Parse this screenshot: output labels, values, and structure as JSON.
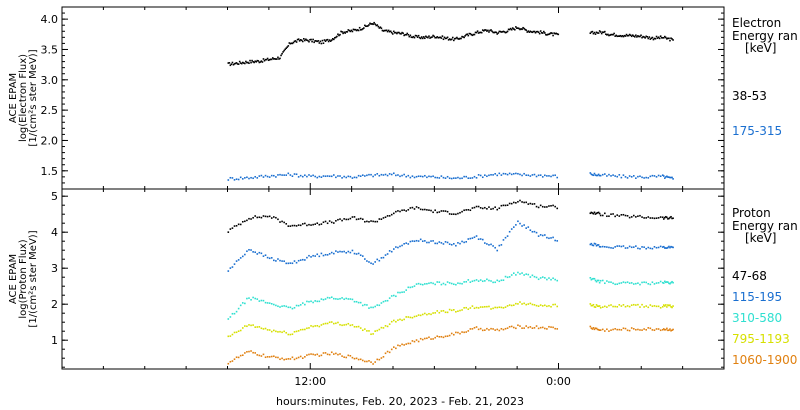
{
  "chart_data": [
    {
      "type": "scatter",
      "panel": "electron",
      "ylabel": [
        "ACE EPAM",
        "log(Electron Flux)",
        "[1/(cm²s ster MeV)]"
      ],
      "ylim": [
        1.2,
        4.2
      ],
      "yticks": [
        "4.0",
        "3.5",
        "3.0",
        "2.5",
        "2.0",
        "1.5"
      ],
      "yticks_values": [
        4.0,
        3.5,
        3.0,
        2.5,
        2.0,
        1.5
      ],
      "legend_title": [
        "Electron",
        "Energy ran",
        "[keV]"
      ],
      "series": [
        {
          "name": "38-53",
          "color": "#000000",
          "points": [
            [
              0,
              3.27
            ],
            [
              0.5,
              3.29
            ],
            [
              1,
              3.31
            ],
            [
              1.5,
              3.32
            ],
            [
              2,
              3.35
            ],
            [
              2.5,
              3.38
            ],
            [
              3,
              3.62
            ],
            [
              3.5,
              3.67
            ],
            [
              4,
              3.66
            ],
            [
              4.5,
              3.63
            ],
            [
              5,
              3.68
            ],
            [
              5.5,
              3.8
            ],
            [
              6,
              3.82
            ],
            [
              6.5,
              3.87
            ],
            [
              7,
              3.95
            ],
            [
              7.5,
              3.82
            ],
            [
              8,
              3.79
            ],
            [
              8.5,
              3.77
            ],
            [
              9,
              3.72
            ],
            [
              9.5,
              3.71
            ],
            [
              10,
              3.73
            ],
            [
              10.5,
              3.7
            ],
            [
              11,
              3.68
            ],
            [
              11.5,
              3.74
            ],
            [
              12,
              3.79
            ],
            [
              12.5,
              3.83
            ],
            [
              13,
              3.79
            ],
            [
              13.5,
              3.82
            ],
            [
              14,
              3.88
            ],
            [
              14.5,
              3.82
            ],
            [
              15,
              3.8
            ],
            [
              15.5,
              3.77
            ],
            [
              16,
              3.75
            ],
            [
              17.5,
              3.78
            ],
            [
              18,
              3.8
            ],
            [
              18.5,
              3.76
            ],
            [
              19,
              3.75
            ],
            [
              19.5,
              3.74
            ],
            [
              20,
              3.73
            ],
            [
              20.5,
              3.7
            ],
            [
              21,
              3.71
            ],
            [
              21.5,
              3.67
            ]
          ]
        },
        {
          "name": "175-315",
          "color": "#1a6fd0",
          "points": [
            [
              0,
              1.38
            ],
            [
              1,
              1.4
            ],
            [
              2,
              1.43
            ],
            [
              3,
              1.45
            ],
            [
              4,
              1.42
            ],
            [
              5,
              1.43
            ],
            [
              6,
              1.41
            ],
            [
              7,
              1.44
            ],
            [
              8,
              1.45
            ],
            [
              9,
              1.42
            ],
            [
              10,
              1.41
            ],
            [
              11,
              1.39
            ],
            [
              12,
              1.42
            ],
            [
              13,
              1.46
            ],
            [
              14,
              1.45
            ],
            [
              15,
              1.44
            ],
            [
              16,
              1.42
            ],
            [
              17.5,
              1.46
            ],
            [
              18,
              1.44
            ],
            [
              19,
              1.42
            ],
            [
              20,
              1.41
            ],
            [
              21,
              1.42
            ],
            [
              21.5,
              1.38
            ]
          ]
        }
      ]
    },
    {
      "type": "scatter",
      "panel": "proton",
      "ylabel": [
        "ACE EPAM",
        "log(Proton Flux)",
        "[1/(cm²s ster MeV)]"
      ],
      "ylim": [
        0.2,
        5.2
      ],
      "yticks": [
        "5",
        "4",
        "3",
        "2",
        "1"
      ],
      "yticks_values": [
        5,
        4,
        3,
        2,
        1
      ],
      "legend_title": [
        "Proton",
        "Energy ran",
        "[keV]"
      ],
      "series": [
        {
          "name": "47-68",
          "color": "#000000",
          "points": [
            [
              0,
              4.05
            ],
            [
              1,
              4.42
            ],
            [
              2,
              4.47
            ],
            [
              3,
              4.2
            ],
            [
              4,
              4.25
            ],
            [
              5,
              4.3
            ],
            [
              6,
              4.42
            ],
            [
              7,
              4.3
            ],
            [
              8,
              4.55
            ],
            [
              9,
              4.7
            ],
            [
              10,
              4.6
            ],
            [
              11,
              4.55
            ],
            [
              12,
              4.7
            ],
            [
              13,
              4.68
            ],
            [
              14,
              4.9
            ],
            [
              15,
              4.75
            ],
            [
              16,
              4.72
            ],
            [
              17.5,
              4.58
            ],
            [
              18,
              4.52
            ],
            [
              19,
              4.47
            ],
            [
              20,
              4.44
            ],
            [
              21,
              4.42
            ],
            [
              21.5,
              4.41
            ]
          ]
        },
        {
          "name": "115-195",
          "color": "#1a6fd0",
          "points": [
            [
              0,
              2.95
            ],
            [
              1,
              3.55
            ],
            [
              2,
              3.3
            ],
            [
              3,
              3.15
            ],
            [
              4,
              3.35
            ],
            [
              5,
              3.45
            ],
            [
              6,
              3.5
            ],
            [
              7,
              3.15
            ],
            [
              8,
              3.55
            ],
            [
              9,
              3.8
            ],
            [
              10,
              3.75
            ],
            [
              11,
              3.68
            ],
            [
              12,
              3.9
            ],
            [
              13,
              3.55
            ],
            [
              14,
              4.3
            ],
            [
              15,
              3.95
            ],
            [
              16,
              3.8
            ],
            [
              17.5,
              3.72
            ],
            [
              18,
              3.62
            ],
            [
              19,
              3.6
            ],
            [
              20,
              3.6
            ],
            [
              21,
              3.6
            ],
            [
              21.5,
              3.6
            ]
          ]
        },
        {
          "name": "310-580",
          "color": "#2fe0d0",
          "points": [
            [
              0,
              1.6
            ],
            [
              1,
              2.2
            ],
            [
              2,
              2.05
            ],
            [
              3,
              1.9
            ],
            [
              4,
              2.1
            ],
            [
              5,
              2.2
            ],
            [
              6,
              2.15
            ],
            [
              7,
              1.9
            ],
            [
              8,
              2.25
            ],
            [
              9,
              2.55
            ],
            [
              10,
              2.6
            ],
            [
              11,
              2.6
            ],
            [
              12,
              2.7
            ],
            [
              13,
              2.65
            ],
            [
              14,
              2.9
            ],
            [
              15,
              2.75
            ],
            [
              16,
              2.7
            ],
            [
              17.5,
              2.72
            ],
            [
              18,
              2.65
            ],
            [
              19,
              2.6
            ],
            [
              20,
              2.6
            ],
            [
              21,
              2.62
            ],
            [
              21.5,
              2.62
            ]
          ]
        },
        {
          "name": "795-1193",
          "color": "#d6e000",
          "points": [
            [
              0,
              1.1
            ],
            [
              1,
              1.45
            ],
            [
              2,
              1.3
            ],
            [
              3,
              1.2
            ],
            [
              4,
              1.4
            ],
            [
              5,
              1.5
            ],
            [
              6,
              1.45
            ],
            [
              7,
              1.2
            ],
            [
              8,
              1.55
            ],
            [
              9,
              1.7
            ],
            [
              10,
              1.8
            ],
            [
              11,
              1.85
            ],
            [
              12,
              1.95
            ],
            [
              13,
              1.9
            ],
            [
              14,
              2.05
            ],
            [
              15,
              2.0
            ],
            [
              16,
              1.98
            ],
            [
              17.5,
              2.0
            ],
            [
              18,
              1.95
            ],
            [
              19,
              1.97
            ],
            [
              20,
              1.97
            ],
            [
              21,
              1.96
            ],
            [
              21.5,
              1.97
            ]
          ]
        },
        {
          "name": "1060-1900",
          "color": "#e08010",
          "points": [
            [
              0,
              0.4
            ],
            [
              1,
              0.7
            ],
            [
              2,
              0.55
            ],
            [
              3,
              0.5
            ],
            [
              4,
              0.6
            ],
            [
              5,
              0.65
            ],
            [
              6,
              0.55
            ],
            [
              7,
              0.4
            ],
            [
              8,
              0.8
            ],
            [
              9,
              1.0
            ],
            [
              10,
              1.1
            ],
            [
              11,
              1.2
            ],
            [
              12,
              1.35
            ],
            [
              13,
              1.3
            ],
            [
              14,
              1.4
            ],
            [
              15,
              1.38
            ],
            [
              16,
              1.35
            ],
            [
              17.5,
              1.38
            ],
            [
              18,
              1.3
            ],
            [
              19,
              1.32
            ],
            [
              20,
              1.33
            ],
            [
              21,
              1.33
            ],
            [
              21.5,
              1.32
            ]
          ]
        }
      ]
    }
  ],
  "x_axis": {
    "range_hours": [
      -8,
      24
    ],
    "ticks": [
      {
        "label": "12:00",
        "hour": 4
      },
      {
        "label": "0:00",
        "hour": 16
      }
    ],
    "xlabel": "hours:minutes, Feb. 20, 2023 - Feb. 21, 2023"
  }
}
